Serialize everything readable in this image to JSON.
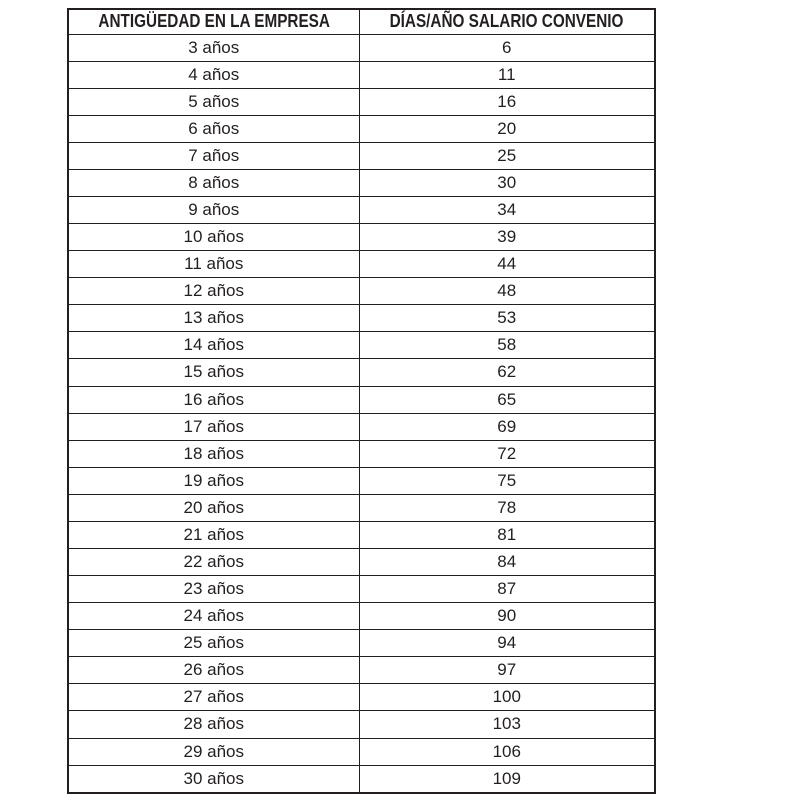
{
  "colors": {
    "background": "#ffffff",
    "border": "#231f20",
    "text": "#231f20"
  },
  "table": {
    "headers": [
      "ANTIGÜEDAD EN LA EMPRESA",
      "DÍAS/AÑO SALARIO CONVENIO"
    ],
    "rows": [
      {
        "antiguedad": "3 años",
        "dias": "6"
      },
      {
        "antiguedad": "4 años",
        "dias": "11"
      },
      {
        "antiguedad": "5 años",
        "dias": "16"
      },
      {
        "antiguedad": "6 años",
        "dias": "20"
      },
      {
        "antiguedad": "7 años",
        "dias": "25"
      },
      {
        "antiguedad": "8 años",
        "dias": "30"
      },
      {
        "antiguedad": "9 años",
        "dias": "34"
      },
      {
        "antiguedad": "10 años",
        "dias": "39"
      },
      {
        "antiguedad": "11 años",
        "dias": "44"
      },
      {
        "antiguedad": "12 años",
        "dias": "48"
      },
      {
        "antiguedad": "13 años",
        "dias": "53"
      },
      {
        "antiguedad": "14 años",
        "dias": "58"
      },
      {
        "antiguedad": "15 años",
        "dias": "62"
      },
      {
        "antiguedad": "16 años",
        "dias": "65"
      },
      {
        "antiguedad": "17 años",
        "dias": "69"
      },
      {
        "antiguedad": "18 años",
        "dias": "72"
      },
      {
        "antiguedad": "19 años",
        "dias": "75"
      },
      {
        "antiguedad": "20 años",
        "dias": "78"
      },
      {
        "antiguedad": "21 años",
        "dias": "81"
      },
      {
        "antiguedad": "22 años",
        "dias": "84"
      },
      {
        "antiguedad": "23 años",
        "dias": "87"
      },
      {
        "antiguedad": "24 años",
        "dias": "90"
      },
      {
        "antiguedad": "25 años",
        "dias": "94"
      },
      {
        "antiguedad": "26 años",
        "dias": "97"
      },
      {
        "antiguedad": "27 años",
        "dias": "100"
      },
      {
        "antiguedad": "28 años",
        "dias": "103"
      },
      {
        "antiguedad": "29 años",
        "dias": "106"
      },
      {
        "antiguedad": "30 años",
        "dias": "109"
      }
    ]
  }
}
